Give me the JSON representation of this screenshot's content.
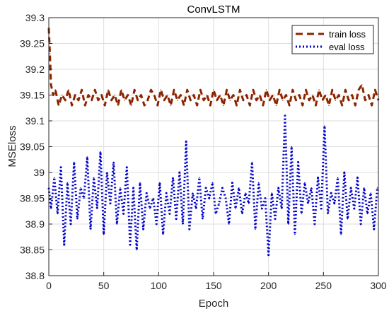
{
  "chart_data": {
    "type": "line",
    "title": "ConvLSTM",
    "xlabel": "Epoch",
    "ylabel": "MSEloss",
    "xlim": [
      0,
      300
    ],
    "ylim": [
      38.8,
      39.3
    ],
    "xticks": [
      0,
      50,
      100,
      150,
      200,
      250,
      300
    ],
    "xtick_labels": [
      "0",
      "50",
      "100",
      "150",
      "200",
      "250",
      "300"
    ],
    "yticks": [
      38.8,
      38.85,
      38.9,
      38.95,
      39.0,
      39.05,
      39.1,
      39.15,
      39.2,
      39.25,
      39.3
    ],
    "ytick_labels": [
      "38.8",
      "38.85",
      "38.9",
      "38.95",
      "39",
      "39.05",
      "39.1",
      "39.15",
      "39.2",
      "39.25",
      "39.3"
    ],
    "grid": true,
    "legend_position": "top-right",
    "series": [
      {
        "name": "train loss",
        "style": "dashed",
        "color": "#8b2500",
        "x": [
          0,
          1,
          2,
          4,
          6,
          9,
          12,
          15,
          18,
          21,
          24,
          27,
          30,
          33,
          36,
          39,
          42,
          45,
          48,
          51,
          54,
          57,
          60,
          63,
          66,
          69,
          72,
          75,
          78,
          81,
          84,
          87,
          90,
          93,
          96,
          99,
          102,
          105,
          108,
          111,
          114,
          117,
          120,
          123,
          126,
          129,
          132,
          135,
          138,
          141,
          144,
          147,
          150,
          153,
          156,
          159,
          162,
          165,
          168,
          171,
          174,
          177,
          180,
          183,
          186,
          189,
          192,
          195,
          198,
          201,
          204,
          207,
          210,
          213,
          216,
          219,
          222,
          225,
          228,
          231,
          234,
          237,
          240,
          243,
          246,
          249,
          252,
          255,
          258,
          261,
          264,
          267,
          270,
          273,
          276,
          279,
          282,
          285,
          288,
          291,
          294,
          297,
          300
        ],
        "y": [
          39.28,
          39.23,
          39.17,
          39.15,
          39.16,
          39.13,
          39.15,
          39.14,
          39.16,
          39.13,
          39.15,
          39.14,
          39.16,
          39.13,
          39.15,
          39.14,
          39.16,
          39.14,
          39.15,
          39.13,
          39.16,
          39.14,
          39.15,
          39.13,
          39.16,
          39.14,
          39.15,
          39.13,
          39.16,
          39.14,
          39.15,
          39.13,
          39.14,
          39.16,
          39.15,
          39.13,
          39.16,
          39.14,
          39.15,
          39.13,
          39.16,
          39.14,
          39.15,
          39.13,
          39.16,
          39.14,
          39.15,
          39.13,
          39.16,
          39.14,
          39.15,
          39.13,
          39.16,
          39.14,
          39.15,
          39.13,
          39.16,
          39.14,
          39.15,
          39.13,
          39.16,
          39.14,
          39.15,
          39.13,
          39.16,
          39.14,
          39.15,
          39.13,
          39.16,
          39.14,
          39.15,
          39.13,
          39.16,
          39.14,
          39.15,
          39.13,
          39.16,
          39.14,
          39.15,
          39.13,
          39.16,
          39.14,
          39.15,
          39.13,
          39.16,
          39.14,
          39.15,
          39.13,
          39.16,
          39.14,
          39.15,
          39.13,
          39.16,
          39.14,
          39.15,
          39.13,
          39.16,
          39.17,
          39.14,
          39.15,
          39.13,
          39.16,
          39.14
        ]
      },
      {
        "name": "eval loss",
        "style": "dotted",
        "color": "#0000cc",
        "x": [
          0,
          2,
          5,
          8,
          11,
          14,
          17,
          20,
          23,
          26,
          29,
          32,
          35,
          38,
          41,
          44,
          47,
          50,
          53,
          56,
          59,
          62,
          65,
          68,
          71,
          74,
          77,
          80,
          83,
          86,
          89,
          92,
          95,
          98,
          101,
          104,
          107,
          110,
          113,
          116,
          119,
          122,
          125,
          128,
          131,
          134,
          137,
          140,
          143,
          146,
          149,
          152,
          155,
          158,
          161,
          164,
          167,
          170,
          173,
          176,
          179,
          182,
          185,
          188,
          191,
          194,
          197,
          200,
          203,
          206,
          209,
          212,
          215,
          218,
          221,
          224,
          227,
          230,
          233,
          236,
          239,
          242,
          245,
          248,
          251,
          254,
          257,
          260,
          263,
          266,
          269,
          272,
          275,
          278,
          281,
          284,
          287,
          290,
          293,
          296,
          299
        ],
        "y": [
          38.97,
          38.93,
          38.99,
          38.92,
          39.01,
          38.86,
          38.98,
          38.9,
          39.02,
          38.91,
          38.97,
          38.95,
          39.03,
          38.89,
          38.99,
          38.93,
          39.04,
          38.88,
          39.0,
          38.94,
          39.02,
          38.9,
          38.97,
          38.92,
          39.01,
          38.86,
          38.97,
          38.85,
          38.98,
          38.89,
          38.96,
          38.93,
          38.95,
          38.9,
          38.98,
          38.88,
          38.96,
          38.92,
          38.99,
          38.91,
          39.0,
          38.9,
          39.06,
          38.89,
          38.96,
          38.93,
          38.99,
          38.91,
          38.97,
          38.95,
          38.98,
          38.92,
          38.94,
          38.97,
          38.95,
          38.9,
          38.98,
          38.93,
          38.97,
          38.92,
          38.96,
          38.94,
          39.02,
          38.89,
          38.98,
          38.93,
          38.95,
          38.84,
          38.96,
          38.91,
          38.97,
          38.93,
          39.11,
          38.9,
          39.05,
          38.88,
          39.02,
          38.92,
          38.98,
          38.94,
          38.97,
          38.9,
          38.99,
          38.93,
          39.09,
          38.92,
          38.96,
          38.94,
          38.99,
          38.88,
          39.0,
          38.91,
          38.97,
          38.93,
          38.99,
          38.9,
          38.97,
          38.92,
          38.96,
          38.89,
          38.97
        ]
      }
    ]
  }
}
